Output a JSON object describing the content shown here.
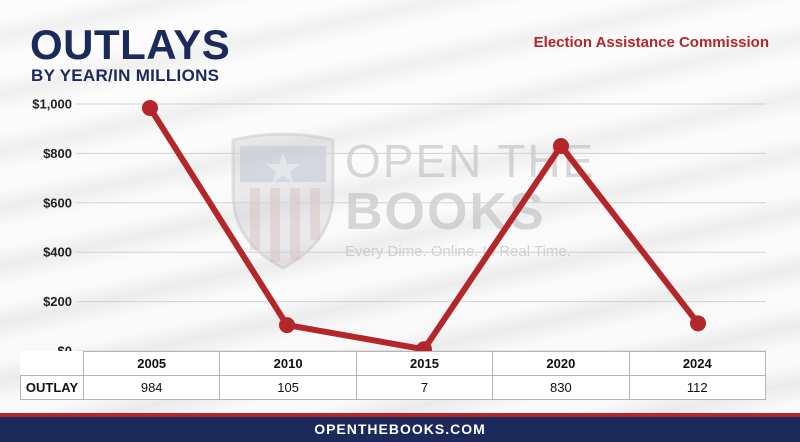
{
  "header": {
    "title": "OUTLAYS",
    "subtitle": "BY YEAR/IN MILLIONS",
    "agency": "Election Assistance Commission"
  },
  "watermark": {
    "line1": "OPEN THE",
    "line2": "BOOKS",
    "tagline": "Every Dime. Online. In Real Time."
  },
  "chart_data": {
    "type": "line",
    "title": "OUTLAYS",
    "subtitle": "BY YEAR/IN MILLIONS",
    "categories": [
      "2005",
      "2010",
      "2015",
      "2020",
      "2024"
    ],
    "series": [
      {
        "name": "OUTLAY",
        "values": [
          984,
          105,
          7,
          830,
          112
        ]
      }
    ],
    "y_ticks": [
      "$1,000",
      "$800",
      "$600",
      "$400",
      "$200",
      "$0"
    ],
    "ylim": [
      0,
      1000
    ],
    "xlabel": "",
    "ylabel": "",
    "grid": true,
    "line_color": "#b3262a"
  },
  "table": {
    "row_label": "OUTLAY",
    "headers": [
      "2005",
      "2010",
      "2015",
      "2020",
      "2024"
    ],
    "values": [
      "984",
      "105",
      "7",
      "830",
      "112"
    ]
  },
  "footer": {
    "text": "OPENTHEBOOKS.COM"
  }
}
